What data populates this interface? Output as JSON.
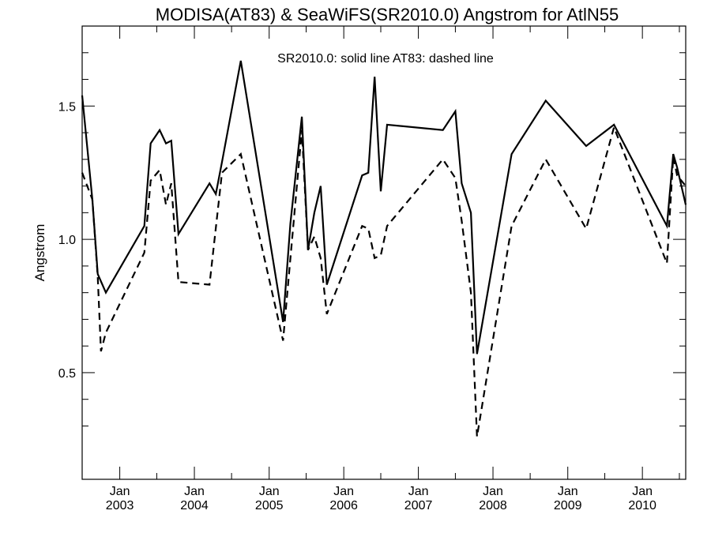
{
  "chart_data": {
    "type": "line",
    "title": "MODISA(AT83) & SeaWiFS(SR2010.0)  Angstrom for AtlN55",
    "legend_text": "SR2010.0: solid line   AT83: dashed line",
    "ylabel": "Angstrom",
    "xlabel": "",
    "ylim": [
      0.1,
      1.8
    ],
    "xlim": [
      "2002-07-01",
      "2010-08-01"
    ],
    "y_ticks": [
      {
        "value": 0.5,
        "label": "0.5"
      },
      {
        "value": 1.0,
        "label": "1.0"
      },
      {
        "value": 1.5,
        "label": "1.5"
      }
    ],
    "y_minor_ticks": [
      0.3,
      0.4,
      0.6,
      0.7,
      0.8,
      0.9,
      1.1,
      1.2,
      1.3,
      1.4,
      1.6,
      1.7
    ],
    "x_ticks": [
      {
        "date": "2003-01-01",
        "month": "Jan",
        "year": "2003"
      },
      {
        "date": "2004-01-01",
        "month": "Jan",
        "year": "2004"
      },
      {
        "date": "2005-01-01",
        "month": "Jan",
        "year": "2005"
      },
      {
        "date": "2006-01-01",
        "month": "Jan",
        "year": "2006"
      },
      {
        "date": "2007-01-01",
        "month": "Jan",
        "year": "2007"
      },
      {
        "date": "2008-01-01",
        "month": "Jan",
        "year": "2008"
      },
      {
        "date": "2009-01-01",
        "month": "Jan",
        "year": "2009"
      },
      {
        "date": "2010-01-01",
        "month": "Jan",
        "year": "2010"
      }
    ],
    "grid": false,
    "series": [
      {
        "style": "solid",
        "color": "#000000",
        "points": [
          {
            "x": "2002-07-01",
            "y": 1.54
          },
          {
            "x": "2002-08-20",
            "y": 1.15
          },
          {
            "x": "2002-09-15",
            "y": 0.87
          },
          {
            "x": "2002-10-25",
            "y": 0.8
          },
          {
            "x": "2003-05-01",
            "y": 1.05
          },
          {
            "x": "2003-06-01",
            "y": 1.36
          },
          {
            "x": "2003-07-15",
            "y": 1.41
          },
          {
            "x": "2003-08-15",
            "y": 1.36
          },
          {
            "x": "2003-09-10",
            "y": 1.37
          },
          {
            "x": "2003-10-15",
            "y": 1.02
          },
          {
            "x": "2004-03-15",
            "y": 1.21
          },
          {
            "x": "2004-04-15",
            "y": 1.17
          },
          {
            "x": "2004-05-15",
            "y": 1.29
          },
          {
            "x": "2004-08-15",
            "y": 1.67
          },
          {
            "x": "2005-03-10",
            "y": 0.69
          },
          {
            "x": "2005-04-15",
            "y": 1.06
          },
          {
            "x": "2005-06-10",
            "y": 1.46
          },
          {
            "x": "2005-07-10",
            "y": 0.96
          },
          {
            "x": "2005-08-10",
            "y": 1.1
          },
          {
            "x": "2005-09-10",
            "y": 1.2
          },
          {
            "x": "2005-10-10",
            "y": 0.83
          },
          {
            "x": "2006-04-01",
            "y": 1.24
          },
          {
            "x": "2006-05-01",
            "y": 1.25
          },
          {
            "x": "2006-06-01",
            "y": 1.61
          },
          {
            "x": "2006-07-01",
            "y": 1.18
          },
          {
            "x": "2006-08-01",
            "y": 1.43
          },
          {
            "x": "2007-05-01",
            "y": 1.41
          },
          {
            "x": "2007-07-01",
            "y": 1.48
          },
          {
            "x": "2007-08-01",
            "y": 1.21
          },
          {
            "x": "2007-09-15",
            "y": 1.1
          },
          {
            "x": "2007-10-15",
            "y": 0.57
          },
          {
            "x": "2008-04-01",
            "y": 1.32
          },
          {
            "x": "2008-09-15",
            "y": 1.52
          },
          {
            "x": "2009-04-01",
            "y": 1.35
          },
          {
            "x": "2009-08-15",
            "y": 1.43
          },
          {
            "x": "2010-05-01",
            "y": 1.05
          },
          {
            "x": "2010-06-01",
            "y": 1.32
          },
          {
            "x": "2010-06-20",
            "y": 1.27
          },
          {
            "x": "2010-08-01",
            "y": 1.13
          }
        ]
      },
      {
        "style": "dashed",
        "color": "#000000",
        "points": [
          {
            "x": "2002-07-01",
            "y": 1.25
          },
          {
            "x": "2002-08-20",
            "y": 1.15
          },
          {
            "x": "2002-09-15",
            "y": 0.86
          },
          {
            "x": "2002-10-01",
            "y": 0.58
          },
          {
            "x": "2002-10-25",
            "y": 0.65
          },
          {
            "x": "2003-05-01",
            "y": 0.95
          },
          {
            "x": "2003-06-01",
            "y": 1.22
          },
          {
            "x": "2003-07-15",
            "y": 1.26
          },
          {
            "x": "2003-08-15",
            "y": 1.13
          },
          {
            "x": "2003-09-10",
            "y": 1.21
          },
          {
            "x": "2003-10-15",
            "y": 0.84
          },
          {
            "x": "2004-03-15",
            "y": 0.83
          },
          {
            "x": "2004-05-15",
            "y": 1.25
          },
          {
            "x": "2004-08-15",
            "y": 1.32
          },
          {
            "x": "2005-03-10",
            "y": 0.62
          },
          {
            "x": "2005-06-10",
            "y": 1.41
          },
          {
            "x": "2005-07-10",
            "y": 0.96
          },
          {
            "x": "2005-08-10",
            "y": 1.01
          },
          {
            "x": "2005-09-10",
            "y": 0.93
          },
          {
            "x": "2005-10-10",
            "y": 0.72
          },
          {
            "x": "2006-04-01",
            "y": 1.05
          },
          {
            "x": "2006-05-01",
            "y": 1.04
          },
          {
            "x": "2006-06-01",
            "y": 0.93
          },
          {
            "x": "2006-07-01",
            "y": 0.94
          },
          {
            "x": "2006-08-01",
            "y": 1.05
          },
          {
            "x": "2007-05-01",
            "y": 1.3
          },
          {
            "x": "2007-07-01",
            "y": 1.23
          },
          {
            "x": "2007-08-01",
            "y": 1.07
          },
          {
            "x": "2007-09-15",
            "y": 0.8
          },
          {
            "x": "2007-10-15",
            "y": 0.26
          },
          {
            "x": "2008-04-01",
            "y": 1.05
          },
          {
            "x": "2008-09-15",
            "y": 1.3
          },
          {
            "x": "2009-04-01",
            "y": 1.04
          },
          {
            "x": "2009-08-15",
            "y": 1.42
          },
          {
            "x": "2010-05-01",
            "y": 0.91
          },
          {
            "x": "2010-06-01",
            "y": 1.31
          },
          {
            "x": "2010-06-20",
            "y": 1.24
          },
          {
            "x": "2010-08-01",
            "y": 1.2
          }
        ]
      }
    ]
  }
}
